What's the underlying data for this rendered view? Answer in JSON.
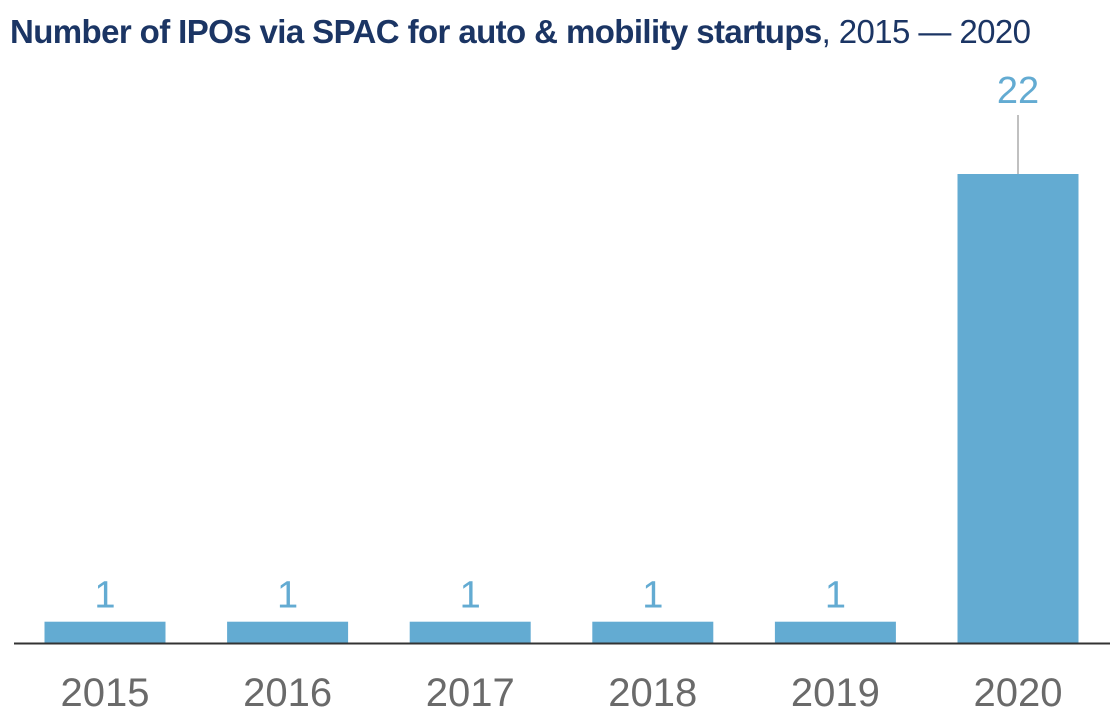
{
  "colors": {
    "bar": "#63abd2",
    "value_label": "#63abd2",
    "title": "#1b3564",
    "axis_label": "#6a6a6a",
    "axis_line": "#333333",
    "leader_line": "#aaaaaa"
  },
  "chart_data": {
    "type": "bar",
    "title": "Number of IPOs via SPAC for auto & mobility startups",
    "subtitle": ", 2015 — 2020",
    "categories": [
      "2015",
      "2016",
      "2017",
      "2018",
      "2019",
      "2020"
    ],
    "values": [
      1,
      1,
      1,
      1,
      1,
      22
    ],
    "data_labels": [
      "1",
      "1",
      "1",
      "1",
      "1",
      "22"
    ],
    "xlabel": "",
    "ylabel": "",
    "ylim": [
      0,
      22
    ],
    "grid": false,
    "legend": "none"
  }
}
